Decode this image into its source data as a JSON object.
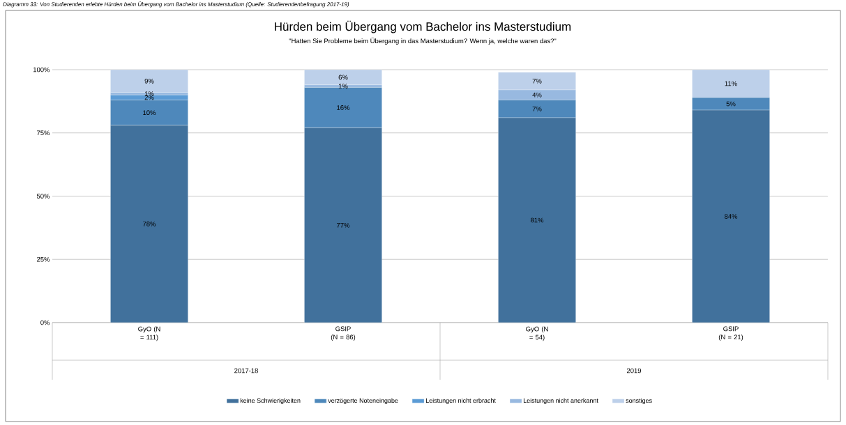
{
  "chart_data": {
    "type": "bar",
    "stacked": true,
    "title": "Hürden beim Übergang vom Bachelor ins Masterstudium",
    "subtitle": "\"Hatten Sie Probleme beim Übergang in das Masterstudium? Wenn ja, welche waren das?\"",
    "annotations": [
      "Diagramm 33: Von Studierenden erlebte Hürden beim Übergang vom Bachelor ins Masterstudium (Quelle: Studierendenbefragung 2017-19)",
      "2017-18",
      "2019"
    ],
    "categories": [
      "GyO (N = 111)",
      "GSIP (N = 86)",
      "GyO (N = 54)",
      "GSIP (N = 21)"
    ],
    "series": [
      {
        "name": "keine Schwierigkeiten",
        "color": "#41719c",
        "values": [
          78,
          77,
          81,
          84
        ],
        "value_labels": [
          "78%",
          "77%",
          "81%",
          "84%"
        ]
      },
      {
        "name": "verzögerte Noteneingabe",
        "color": "#4e88bb",
        "values": [
          10,
          16,
          7,
          5
        ],
        "value_labels": [
          "10%",
          "16%",
          "7%",
          "5%"
        ]
      },
      {
        "name": "Leistungen nicht erbracht",
        "color": "#5b9bd5",
        "values": [
          2,
          0,
          0,
          0
        ],
        "value_labels": [
          "2%",
          null,
          null,
          null
        ]
      },
      {
        "name": "Leistungen nicht anerkannt",
        "color": "#98b9e0",
        "values": [
          1,
          1,
          4,
          0
        ],
        "value_labels": [
          "1%",
          "1%",
          "4%",
          null
        ]
      },
      {
        "name": "sonstiges",
        "color": "#bdd0ea",
        "values": [
          9,
          6,
          7,
          11
        ],
        "value_labels": [
          "9%",
          "6%",
          "7%",
          "11%"
        ]
      }
    ],
    "ylim": [
      0,
      100
    ],
    "yticks": [
      {
        "value": 0,
        "label": "0%"
      },
      {
        "value": 25,
        "label": "25%"
      },
      {
        "value": 50,
        "label": "50%"
      },
      {
        "value": 75,
        "label": "75%"
      },
      {
        "value": 100,
        "label": "100%"
      }
    ],
    "grid": "y",
    "legend": "bottom"
  }
}
